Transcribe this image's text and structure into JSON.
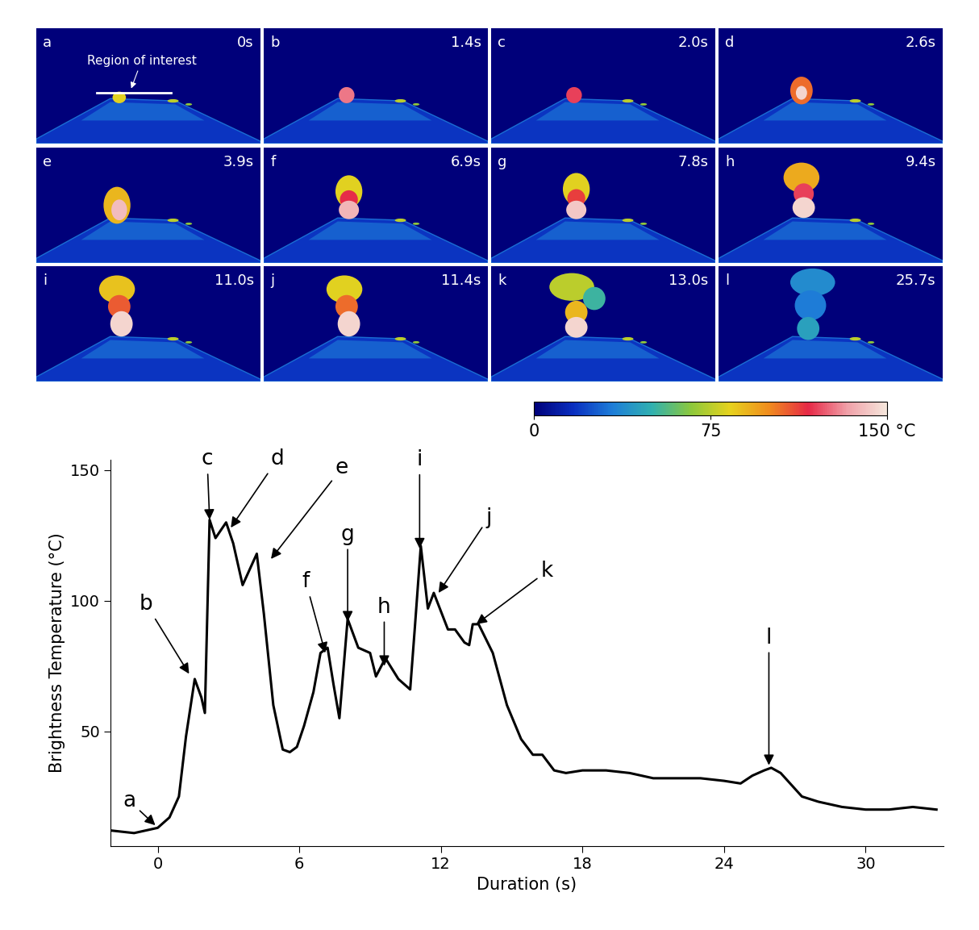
{
  "chart_data": {
    "type": "line",
    "x_label": "Duration (s)",
    "y_label": "Brightness Temperature (°C)",
    "x": [
      -2,
      -1,
      0,
      0.5,
      0.9,
      1.2,
      1.57,
      1.85,
      2.0,
      2.2,
      2.45,
      2.9,
      3.2,
      3.6,
      3.9,
      4.2,
      4.5,
      4.9,
      5.3,
      5.6,
      5.9,
      6.2,
      6.6,
      6.9,
      7.2,
      7.45,
      7.7,
      8.05,
      8.5,
      9.0,
      9.25,
      9.65,
      10.2,
      10.7,
      10.9,
      11.15,
      11.45,
      11.7,
      12.3,
      12.6,
      13.0,
      13.2,
      13.35,
      13.6,
      14.2,
      14.8,
      15.4,
      15.9,
      16.3,
      16.8,
      17.3,
      18,
      19,
      20,
      21,
      22,
      23,
      24,
      24.7,
      25.2,
      25.7,
      26.0,
      26.4,
      26.8,
      27.3,
      28,
      29,
      30,
      31,
      32,
      33
    ],
    "values": [
      12,
      11,
      13,
      17,
      25,
      48,
      70,
      63,
      57,
      131,
      124,
      130,
      122,
      106,
      112,
      118,
      95,
      60,
      43,
      42,
      44,
      52,
      65,
      80,
      82,
      68,
      55,
      93,
      82,
      80,
      71,
      78,
      70,
      66,
      90,
      121,
      97,
      103,
      89,
      89,
      84,
      83,
      91,
      91,
      80,
      60,
      47,
      41,
      41,
      35,
      34,
      35,
      35,
      34,
      32,
      32,
      32,
      31,
      30,
      33,
      35,
      36,
      34,
      30,
      25,
      23,
      21,
      20,
      20,
      21,
      20
    ],
    "color": "#000000",
    "xlim": [
      -2,
      33.3
    ],
    "xticks": [
      0,
      6,
      12,
      18,
      24,
      30
    ],
    "ylim": [
      6,
      154
    ],
    "yticks": [
      50,
      100,
      150
    ],
    "annotations": [
      {
        "label": "a",
        "x": -0.1,
        "y": 14
      },
      {
        "label": "b",
        "x": 1.33,
        "y": 72
      },
      {
        "label": "c",
        "x": 2.2,
        "y": 131
      },
      {
        "label": "d",
        "x": 3.1,
        "y": 128
      },
      {
        "label": "e",
        "x": 4.8,
        "y": 116
      },
      {
        "label": "f",
        "x": 7.1,
        "y": 80
      },
      {
        "label": "g",
        "x": 8.05,
        "y": 92
      },
      {
        "label": "h",
        "x": 9.6,
        "y": 75
      },
      {
        "label": "i",
        "x": 11.1,
        "y": 120
      },
      {
        "label": "j",
        "x": 11.9,
        "y": 103
      },
      {
        "label": "k",
        "x": 13.5,
        "y": 91
      },
      {
        "label": "l",
        "x": 25.9,
        "y": 37
      }
    ]
  },
  "image_panels": {
    "region_label": "Region of interest",
    "panels": [
      {
        "label": "a",
        "time": "0s"
      },
      {
        "label": "b",
        "time": "1.4s"
      },
      {
        "label": "c",
        "time": "2.0s"
      },
      {
        "label": "d",
        "time": "2.6s"
      },
      {
        "label": "e",
        "time": "3.9s"
      },
      {
        "label": "f",
        "time": "6.9s"
      },
      {
        "label": "g",
        "time": "7.8s"
      },
      {
        "label": "h",
        "time": "9.4s"
      },
      {
        "label": "i",
        "time": "11.0s"
      },
      {
        "label": "j",
        "time": "11.4s"
      },
      {
        "label": "k",
        "time": "13.0s"
      },
      {
        "label": "l",
        "time": "25.7s"
      }
    ]
  },
  "colorbar": {
    "range": [
      0,
      150
    ],
    "ticks": [
      0,
      75,
      {
        "value": 150,
        "label": "150 °C"
      }
    ]
  }
}
